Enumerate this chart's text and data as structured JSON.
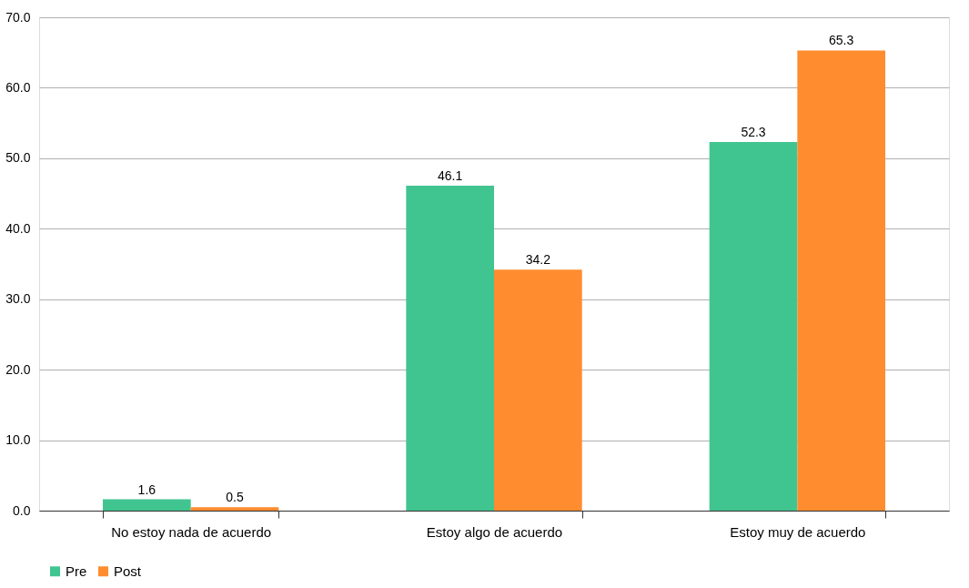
{
  "chart_data": {
    "type": "bar",
    "categories": [
      "No estoy nada de acuerdo",
      "Estoy algo de acuerdo",
      "Estoy muy de acuerdo"
    ],
    "series": [
      {
        "name": "Pre",
        "color": "#41c590",
        "values": [
          1.6,
          46.1,
          52.3
        ]
      },
      {
        "name": "Post",
        "color": "#ff8c2f",
        "values": [
          0.5,
          34.2,
          65.3
        ]
      }
    ],
    "ylim": [
      0,
      70
    ],
    "yticks": [
      {
        "value": 0,
        "label": "0.0"
      },
      {
        "value": 10,
        "label": "10.0"
      },
      {
        "value": 20,
        "label": "20.0"
      },
      {
        "value": 30,
        "label": "30.0"
      },
      {
        "value": 40,
        "label": "40.0"
      },
      {
        "value": 50,
        "label": "50.0"
      },
      {
        "value": 60,
        "label": "60.0"
      },
      {
        "value": 70,
        "label": "70.0"
      }
    ],
    "grid": "y",
    "legend": "bottom",
    "data_labels": true
  }
}
